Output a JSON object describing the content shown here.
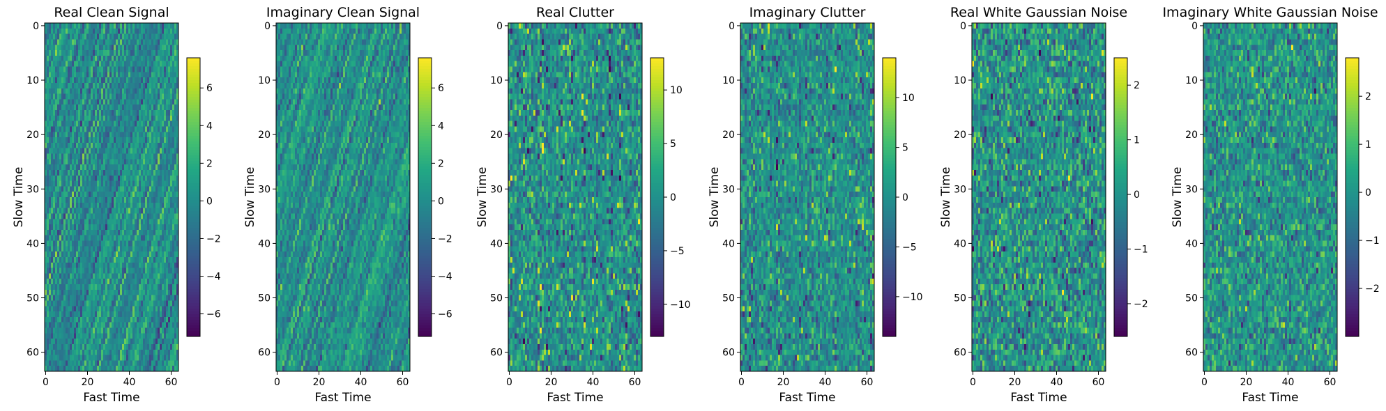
{
  "chart_data": [
    {
      "type": "heatmap",
      "title": "Real Clean Signal",
      "xlabel": "Fast Time",
      "ylabel": "Slow Time",
      "x_range": [
        0,
        63
      ],
      "y_range": [
        0,
        63
      ],
      "y_inverted": true,
      "x_ticks": [
        0,
        20,
        40,
        60
      ],
      "y_ticks": [
        0,
        10,
        20,
        30,
        40,
        50,
        60
      ],
      "colorbar": {
        "min": -7.2,
        "max": 7.6,
        "ticks": [
          6,
          4,
          2,
          0,
          -2,
          -4,
          -6
        ],
        "tick_labels": [
          "6",
          "4",
          "2",
          "0",
          "−2",
          "−4",
          "−6"
        ]
      },
      "pattern": "diagonal-stripes",
      "seed": 11
    },
    {
      "type": "heatmap",
      "title": "Imaginary Clean Signal",
      "xlabel": "Fast Time",
      "ylabel": "Slow Time",
      "x_range": [
        0,
        63
      ],
      "y_range": [
        0,
        63
      ],
      "y_inverted": true,
      "x_ticks": [
        0,
        20,
        40,
        60
      ],
      "y_ticks": [
        0,
        10,
        20,
        30,
        40,
        50,
        60
      ],
      "colorbar": {
        "min": -7.2,
        "max": 7.6,
        "ticks": [
          6,
          4,
          2,
          0,
          -2,
          -4,
          -6
        ],
        "tick_labels": [
          "6",
          "4",
          "2",
          "0",
          "−2",
          "−4",
          "−6"
        ]
      },
      "pattern": "diagonal-stripes",
      "seed": 23
    },
    {
      "type": "heatmap",
      "title": "Real Clutter",
      "xlabel": "Fast Time",
      "ylabel": "Slow Time",
      "x_range": [
        0,
        63
      ],
      "y_range": [
        0,
        63
      ],
      "y_inverted": true,
      "x_ticks": [
        0,
        20,
        40,
        60
      ],
      "y_ticks": [
        0,
        10,
        20,
        30,
        40,
        50,
        60
      ],
      "colorbar": {
        "min": -13,
        "max": 13,
        "ticks": [
          10,
          5,
          0,
          -5,
          -10
        ],
        "tick_labels": [
          "10",
          "5",
          "0",
          "−5",
          "−10"
        ]
      },
      "pattern": "vertical-stripes",
      "seed": 37
    },
    {
      "type": "heatmap",
      "title": "Imaginary Clutter",
      "xlabel": "Fast Time",
      "ylabel": "Slow Time",
      "x_range": [
        0,
        63
      ],
      "y_range": [
        0,
        63
      ],
      "y_inverted": true,
      "x_ticks": [
        0,
        20,
        40,
        60
      ],
      "y_ticks": [
        0,
        10,
        20,
        30,
        40,
        50,
        60
      ],
      "colorbar": {
        "min": -14,
        "max": 14,
        "ticks": [
          10,
          5,
          0,
          -5,
          -10
        ],
        "tick_labels": [
          "10",
          "5",
          "0",
          "−5",
          "−10"
        ]
      },
      "pattern": "vertical-stripes",
      "seed": 41
    },
    {
      "type": "heatmap",
      "title": "Real White Gaussian Noise",
      "xlabel": "Fast Time",
      "ylabel": "Slow Time",
      "x_range": [
        0,
        63
      ],
      "y_range": [
        0,
        63
      ],
      "y_inverted": true,
      "x_ticks": [
        0,
        20,
        40,
        60
      ],
      "y_ticks": [
        0,
        10,
        20,
        30,
        40,
        50,
        60
      ],
      "colorbar": {
        "min": -2.6,
        "max": 2.5,
        "ticks": [
          2,
          1,
          0,
          -1,
          -2
        ],
        "tick_labels": [
          "2",
          "1",
          "0",
          "−1",
          "−2"
        ]
      },
      "pattern": "noise",
      "seed": 53
    },
    {
      "type": "heatmap",
      "title": "Imaginary White Gaussian Noise",
      "xlabel": "Fast Time",
      "ylabel": "Slow Time",
      "x_range": [
        0,
        63
      ],
      "y_range": [
        0,
        63
      ],
      "y_inverted": true,
      "x_ticks": [
        0,
        20,
        40,
        60
      ],
      "y_ticks": [
        0,
        10,
        20,
        30,
        40,
        50,
        60
      ],
      "colorbar": {
        "min": -3.0,
        "max": 2.8,
        "ticks": [
          2,
          1,
          0,
          -1,
          -2
        ],
        "tick_labels": [
          "2",
          "1",
          "0",
          "−1",
          "−2"
        ]
      },
      "pattern": "noise",
      "seed": 67
    }
  ]
}
